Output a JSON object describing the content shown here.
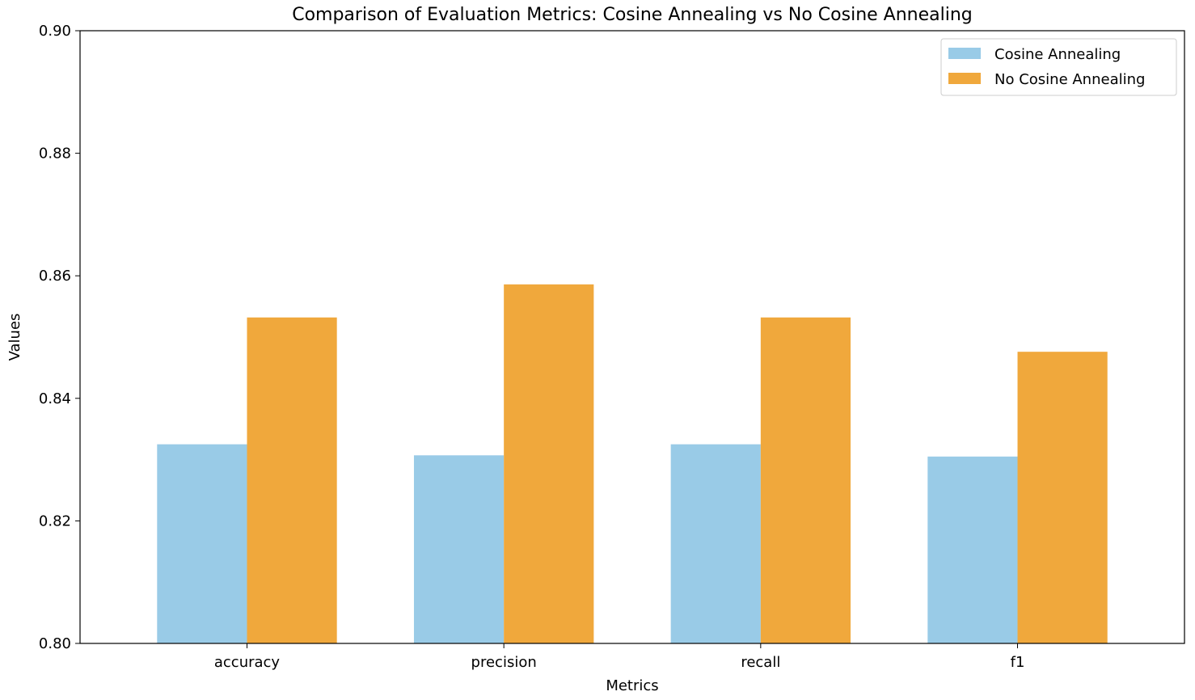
{
  "chart_data": {
    "type": "bar",
    "title": "Comparison of Evaluation Metrics: Cosine Annealing vs No Cosine Annealing",
    "xlabel": "Metrics",
    "ylabel": "Values",
    "categories": [
      "accuracy",
      "precision",
      "recall",
      "f1"
    ],
    "series": [
      {
        "name": "Cosine Annealing",
        "color": "#99cbe7",
        "values": [
          0.8325,
          0.8307,
          0.8325,
          0.8305
        ]
      },
      {
        "name": "No Cosine Annealing",
        "color": "#f0a83c",
        "values": [
          0.8532,
          0.8586,
          0.8532,
          0.8476
        ]
      }
    ],
    "ylim": [
      0.8,
      0.9
    ],
    "yticks": [
      "0.80",
      "0.82",
      "0.84",
      "0.86",
      "0.88",
      "0.90"
    ],
    "grid": false,
    "legend_position": "top-right"
  }
}
